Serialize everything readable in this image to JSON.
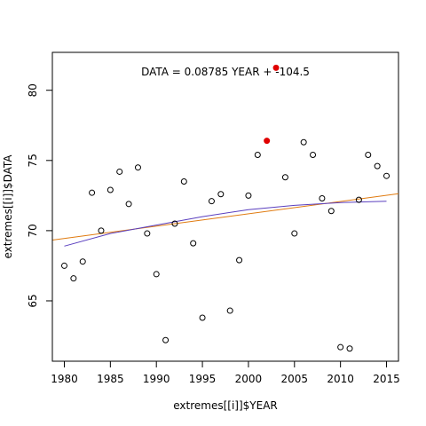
{
  "chart_data": {
    "type": "scatter",
    "xlabel": "extremes[[i]]$YEAR",
    "ylabel": "extremes[[i]]$DATA",
    "annotation": "DATA = 0.08785 YEAR + -104.5",
    "xlim": [
      1978.7,
      2016.3
    ],
    "ylim": [
      60.7,
      82.7
    ],
    "xticks": [
      1980,
      1985,
      1990,
      1995,
      2000,
      2005,
      2010,
      2015
    ],
    "yticks": [
      65,
      70,
      75,
      80
    ],
    "grid": false,
    "points": [
      {
        "x": 1980,
        "y": 67.5
      },
      {
        "x": 1981,
        "y": 66.6
      },
      {
        "x": 1982,
        "y": 67.8
      },
      {
        "x": 1983,
        "y": 72.7
      },
      {
        "x": 1984,
        "y": 70.0
      },
      {
        "x": 1985,
        "y": 72.9
      },
      {
        "x": 1986,
        "y": 74.2
      },
      {
        "x": 1987,
        "y": 71.9
      },
      {
        "x": 1988,
        "y": 74.5
      },
      {
        "x": 1989,
        "y": 69.8
      },
      {
        "x": 1990,
        "y": 66.9
      },
      {
        "x": 1991,
        "y": 62.2
      },
      {
        "x": 1992,
        "y": 70.5
      },
      {
        "x": 1993,
        "y": 73.5
      },
      {
        "x": 1994,
        "y": 69.1
      },
      {
        "x": 1995,
        "y": 63.8
      },
      {
        "x": 1996,
        "y": 72.1
      },
      {
        "x": 1997,
        "y": 72.6
      },
      {
        "x": 1998,
        "y": 64.3
      },
      {
        "x": 1999,
        "y": 67.9
      },
      {
        "x": 2000,
        "y": 72.5
      },
      {
        "x": 2001,
        "y": 75.4
      },
      {
        "x": 2002,
        "y": 76.4,
        "highlight": true
      },
      {
        "x": 2003,
        "y": 81.6,
        "highlight": true
      },
      {
        "x": 2004,
        "y": 73.8
      },
      {
        "x": 2005,
        "y": 69.8
      },
      {
        "x": 2006,
        "y": 76.3
      },
      {
        "x": 2007,
        "y": 75.4
      },
      {
        "x": 2008,
        "y": 72.3
      },
      {
        "x": 2009,
        "y": 71.4
      },
      {
        "x": 2010,
        "y": 61.7
      },
      {
        "x": 2011,
        "y": 61.6
      },
      {
        "x": 2012,
        "y": 72.2
      },
      {
        "x": 2013,
        "y": 75.4
      },
      {
        "x": 2014,
        "y": 74.6
      },
      {
        "x": 2015,
        "y": 73.9
      }
    ],
    "lines": [
      {
        "kind": "linear-fit",
        "color": "#e07b10",
        "x": [
          1978.7,
          2016.3
        ],
        "y": [
          69.33,
          72.63
        ]
      },
      {
        "kind": "smooth",
        "color": "#5a3fbf",
        "x": [
          1980,
          1985,
          1990,
          1995,
          2000,
          2005,
          2010,
          2015
        ],
        "y": [
          68.9,
          69.8,
          70.4,
          71.0,
          71.5,
          71.8,
          72.0,
          72.1
        ]
      }
    ],
    "colors": {
      "highlight": "#e00000",
      "point_stroke": "#000000"
    }
  }
}
